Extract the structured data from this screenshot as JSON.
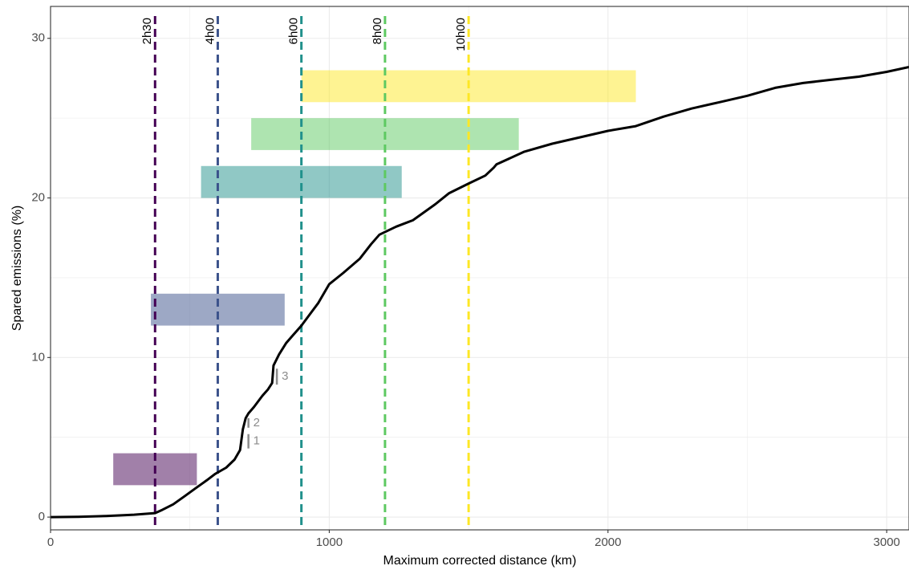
{
  "chart_data": {
    "type": "line",
    "title": "",
    "xlabel": "Maximum corrected distance (km)",
    "ylabel": "Spared emissions (%)",
    "xlim": [
      0,
      3080
    ],
    "ylim": [
      -0.8,
      32
    ],
    "x_ticks": [
      0,
      1000,
      2000,
      3000
    ],
    "x_tick_labels": [
      "0",
      "1000",
      "2000",
      "3000"
    ],
    "y_ticks": [
      0,
      10,
      20,
      30
    ],
    "y_tick_labels": [
      "0",
      "10",
      "20",
      "30"
    ],
    "grid": true,
    "series": [
      {
        "x": [
          0,
          100,
          200,
          300,
          375,
          400,
          440,
          480,
          520,
          560,
          590,
          610,
          630,
          660,
          680,
          690,
          700,
          710,
          730,
          760,
          780,
          795,
          800,
          820,
          845,
          870,
          900,
          930,
          960,
          1000,
          1050,
          1110,
          1150,
          1180,
          1240,
          1300,
          1380,
          1430,
          1500,
          1560,
          1590,
          1600,
          1700,
          1800,
          1900,
          2000,
          2100,
          2200,
          2300,
          2400,
          2500,
          2600,
          2700,
          2800,
          2900,
          3000,
          3080
        ],
        "y": [
          0,
          0.02,
          0.07,
          0.15,
          0.25,
          0.45,
          0.8,
          1.3,
          1.8,
          2.3,
          2.7,
          2.9,
          3.1,
          3.6,
          4.2,
          5.5,
          6.2,
          6.5,
          6.9,
          7.6,
          8.0,
          8.4,
          9.5,
          10.2,
          10.9,
          11.4,
          12.0,
          12.7,
          13.4,
          14.6,
          15.3,
          16.2,
          17.1,
          17.7,
          18.2,
          18.6,
          19.6,
          20.3,
          20.9,
          21.4,
          21.9,
          22.1,
          22.9,
          23.4,
          23.8,
          24.2,
          24.5,
          25.1,
          25.6,
          26.0,
          26.4,
          26.9,
          27.2,
          27.4,
          27.6,
          27.9,
          28.2
        ]
      }
    ],
    "vlines": [
      {
        "x": 375,
        "label": "2h30",
        "color": "#440154"
      },
      {
        "x": 600,
        "label": "4h00",
        "color": "#3b528b"
      },
      {
        "x": 900,
        "label": "6h00",
        "color": "#21918c"
      },
      {
        "x": 1200,
        "label": "8h00",
        "color": "#5ec962"
      },
      {
        "x": 1500,
        "label": "10h00",
        "color": "#fde725"
      }
    ],
    "rects": [
      {
        "x0": 225,
        "x1": 525,
        "y0": 2,
        "y1": 4,
        "color": "#440154"
      },
      {
        "x0": 360,
        "x1": 840,
        "y0": 12,
        "y1": 14,
        "color": "#3b528b"
      },
      {
        "x0": 540,
        "x1": 1260,
        "y0": 20,
        "y1": 22,
        "color": "#21918c"
      },
      {
        "x0": 720,
        "x1": 1680,
        "y0": 23,
        "y1": 25,
        "color": "#5ec962"
      },
      {
        "x0": 900,
        "x1": 2100,
        "y0": 26,
        "y1": 28,
        "color": "#fde725"
      }
    ],
    "annotations": [
      {
        "label": "1",
        "x": 710,
        "y0": 4.3,
        "y1": 5.2
      },
      {
        "label": "2",
        "x": 710,
        "y0": 5.6,
        "y1": 6.2
      },
      {
        "label": "3",
        "x": 812,
        "y0": 8.3,
        "y1": 9.3
      }
    ]
  }
}
